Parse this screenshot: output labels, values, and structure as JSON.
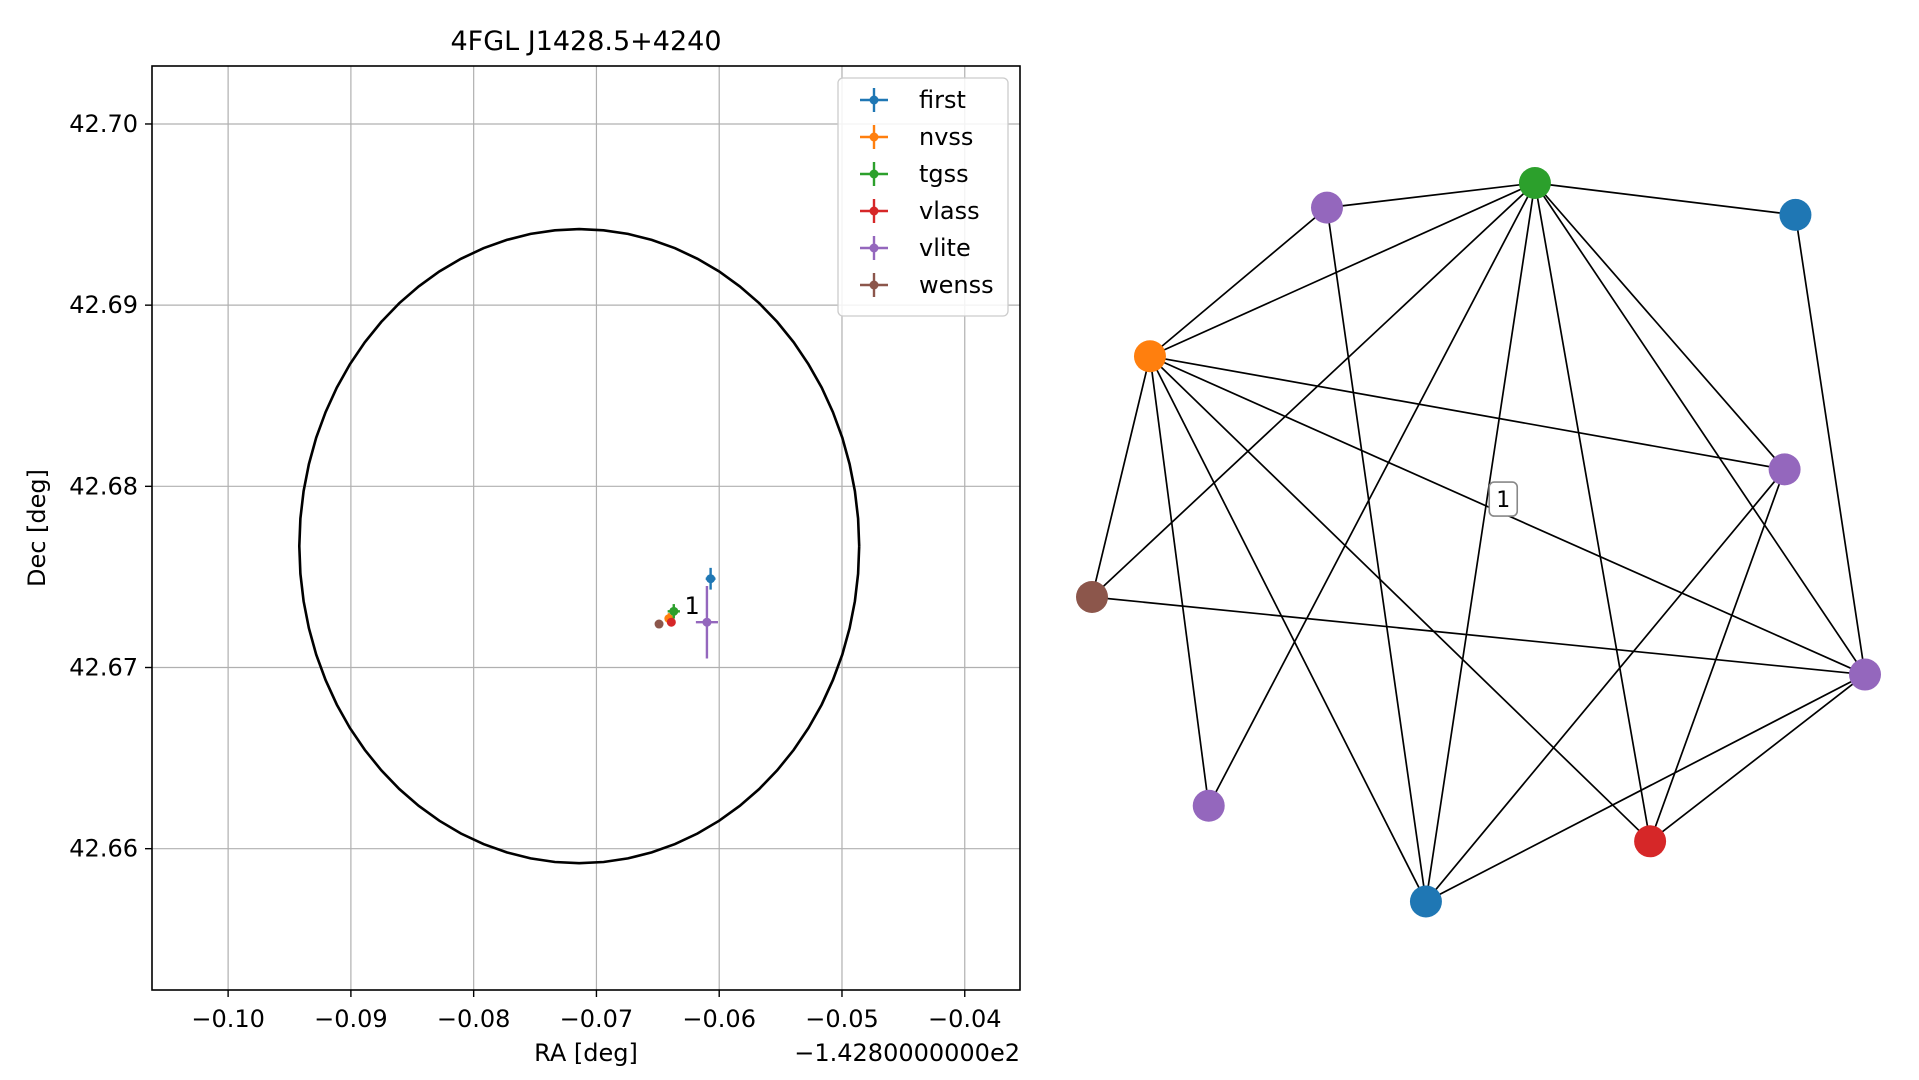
{
  "chart_data": [
    {
      "type": "scatter",
      "title": "4FGL J1428.5+4240",
      "xlabel": "RA [deg]",
      "ylabel": "Dec [deg]",
      "x_offset_text": "−1.4280000000e2",
      "x_offset": -142.8,
      "xlim": [
        -0.1062,
        -0.0355
      ],
      "ylim": [
        42.6522,
        42.7032
      ],
      "x_ticks": [
        -0.1,
        -0.09,
        -0.08,
        -0.07,
        -0.06,
        -0.05,
        -0.04
      ],
      "x_tick_labels": [
        "−0.10",
        "−0.09",
        "−0.08",
        "−0.07",
        "−0.06",
        "−0.05",
        "−0.04"
      ],
      "y_ticks": [
        42.66,
        42.67,
        42.68,
        42.69,
        42.7
      ],
      "y_tick_labels": [
        "42.66",
        "42.67",
        "42.68",
        "42.69",
        "42.70"
      ],
      "grid": true,
      "legend_position": "top-right",
      "ellipse": {
        "center": [
          -0.0714,
          42.6767
        ],
        "semi_x": 0.0228,
        "semi_y": 0.0175,
        "color": "#000000"
      },
      "annotations": [
        {
          "text": "1",
          "x": -0.0622,
          "y": 42.6734
        }
      ],
      "series": [
        {
          "name": "first",
          "color": "#1f77b4",
          "x": -0.0607,
          "y": 42.6749,
          "xerr": 0.0004,
          "yerr": 0.0006
        },
        {
          "name": "nvss",
          "color": "#ff7f0e",
          "x": -0.0641,
          "y": 42.6727,
          "xerr": 0.0003,
          "yerr": 0.0003
        },
        {
          "name": "tgss",
          "color": "#2ca02c",
          "x": -0.0637,
          "y": 42.6731,
          "xerr": 0.0005,
          "yerr": 0.0004
        },
        {
          "name": "vlass",
          "color": "#d62728",
          "x": -0.0639,
          "y": 42.6725,
          "xerr": 0.0002,
          "yerr": 0.0002
        },
        {
          "name": "vlite",
          "color": "#9467bd",
          "x": -0.061,
          "y": 42.6725,
          "xerr": 0.0009,
          "yerr": 0.002
        },
        {
          "name": "wenss",
          "color": "#8c564b",
          "x": -0.0649,
          "y": 42.6724,
          "xerr": 0.0002,
          "yerr": 0.0002
        }
      ]
    },
    {
      "type": "network",
      "nodes": [
        {
          "id": 0,
          "color": "#2ca02c",
          "x": 0.573,
          "y": 0.0
        },
        {
          "id": 1,
          "color": "#9467bd",
          "x": 0.304,
          "y": 0.034
        },
        {
          "id": 2,
          "color": "#1f77b4",
          "x": 0.91,
          "y": 0.044
        },
        {
          "id": 3,
          "color": "#ff7f0e",
          "x": 0.075,
          "y": 0.239
        },
        {
          "id": 4,
          "color": "#9467bd",
          "x": 0.896,
          "y": 0.395
        },
        {
          "id": 5,
          "color": "#8c564b",
          "x": 0.0,
          "y": 0.571
        },
        {
          "id": 6,
          "color": "#9467bd",
          "x": 1.0,
          "y": 0.678
        },
        {
          "id": 7,
          "color": "#9467bd",
          "x": 0.151,
          "y": 0.859
        },
        {
          "id": 8,
          "color": "#d62728",
          "x": 0.722,
          "y": 0.908
        },
        {
          "id": 9,
          "color": "#1f77b4",
          "x": 0.432,
          "y": 0.991
        }
      ],
      "edges": [
        [
          0,
          1
        ],
        [
          0,
          2
        ],
        [
          0,
          3
        ],
        [
          0,
          5
        ],
        [
          0,
          4
        ],
        [
          0,
          6
        ],
        [
          0,
          7
        ],
        [
          0,
          8
        ],
        [
          0,
          9
        ],
        [
          1,
          3
        ],
        [
          1,
          9
        ],
        [
          2,
          6
        ],
        [
          3,
          4
        ],
        [
          3,
          5
        ],
        [
          3,
          6
        ],
        [
          3,
          7
        ],
        [
          3,
          8
        ],
        [
          3,
          9
        ],
        [
          4,
          8
        ],
        [
          4,
          9
        ],
        [
          5,
          6
        ],
        [
          6,
          8
        ],
        [
          6,
          9
        ]
      ],
      "annotations": [
        {
          "text": "1",
          "x": 0.532,
          "y": 0.436
        }
      ]
    }
  ]
}
